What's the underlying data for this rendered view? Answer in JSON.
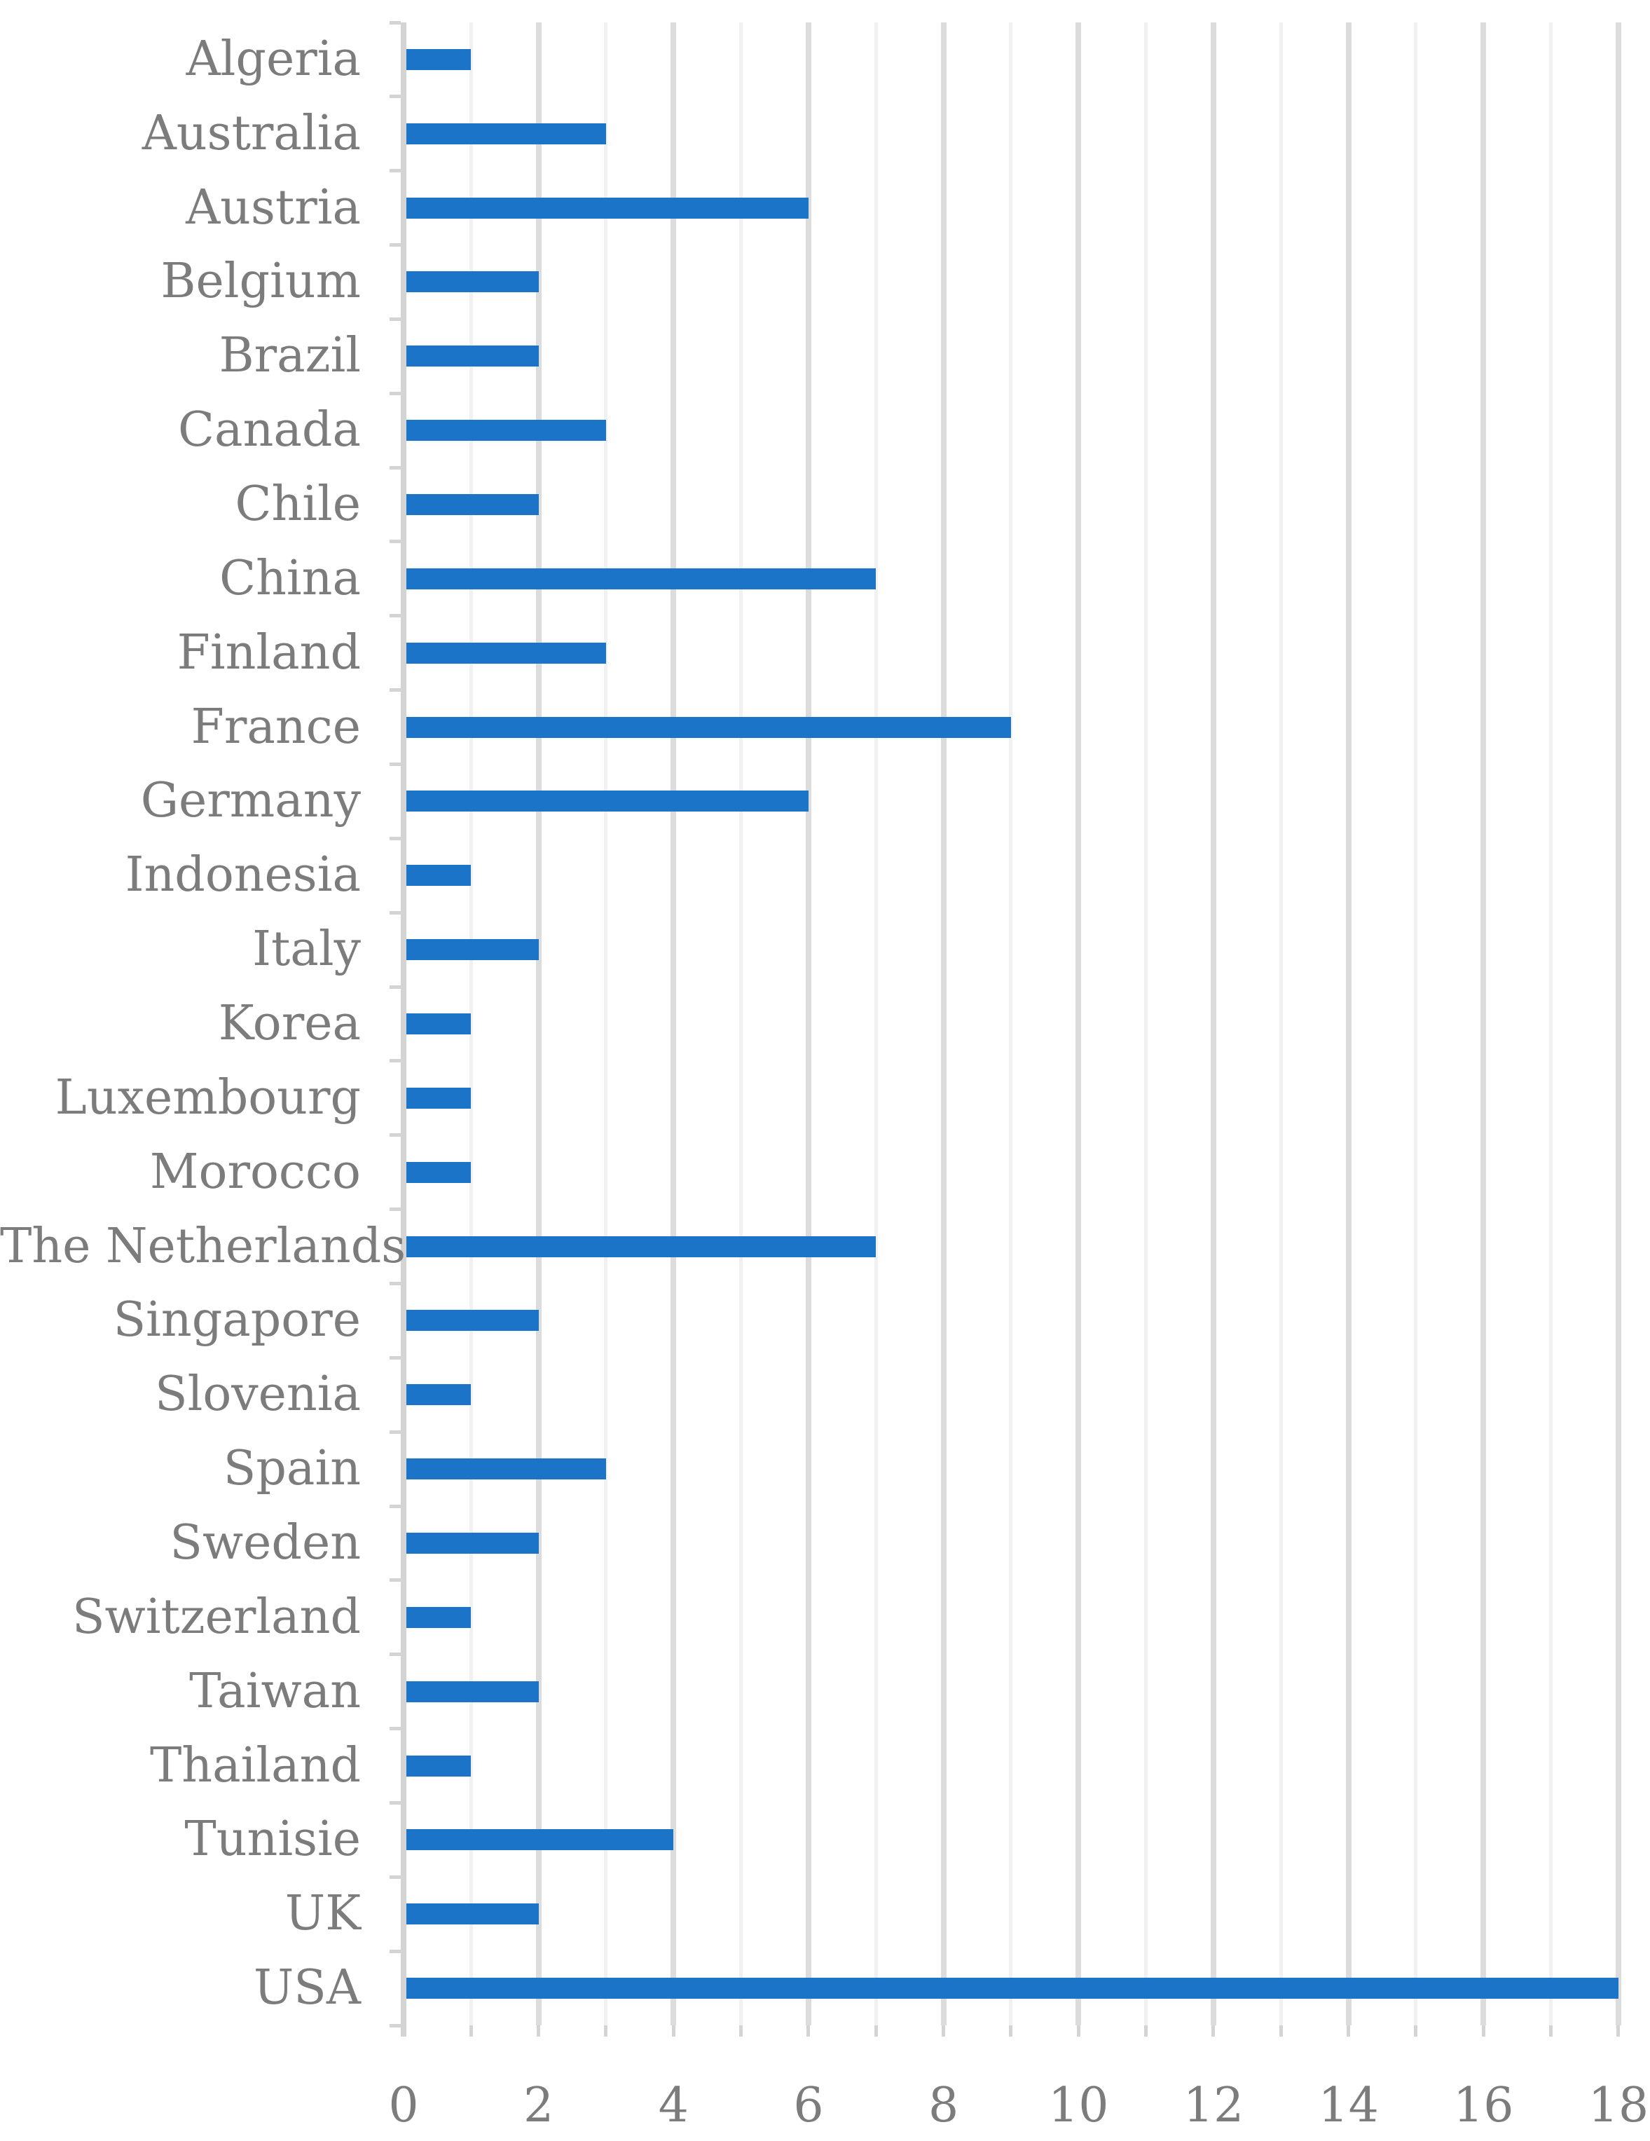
{
  "chart_data": {
    "type": "bar",
    "orientation": "horizontal",
    "title": "",
    "xlabel": "",
    "ylabel": "",
    "categories": [
      "Algeria",
      "Australia",
      "Austria",
      "Belgium",
      "Brazil",
      "Canada",
      "Chile",
      "China",
      "Finland",
      "France",
      "Germany",
      "Indonesia",
      "Italy",
      "Korea",
      "Luxembourg",
      "Morocco",
      "The Netherlands",
      "Singapore",
      "Slovenia",
      "Spain",
      "Sweden",
      "Switzerland",
      "Taiwan",
      "Thailand",
      "Tunisie",
      "UK",
      "USA"
    ],
    "values": [
      1,
      3,
      6,
      2,
      2,
      3,
      2,
      7,
      3,
      9,
      6,
      1,
      2,
      1,
      1,
      1,
      7,
      2,
      1,
      3,
      2,
      1,
      2,
      1,
      4,
      2,
      18
    ],
    "xlim": [
      0,
      18
    ],
    "x_tick_labels": [
      "0",
      "2",
      "4",
      "6",
      "8",
      "10",
      "12",
      "14",
      "16",
      "18"
    ],
    "x_tick_values": [
      0,
      2,
      4,
      6,
      8,
      10,
      12,
      14,
      16,
      18
    ],
    "gridlines": "vertical every 1 unit, labeled every 2 units",
    "legend": "none",
    "colors": {
      "bar": "#1C74C9",
      "axis_text": "#7C7C7C",
      "major_gridline": "#DCDCDC",
      "minor_gridline": "#F1F1F1",
      "axis_line": "#D4D4D4",
      "background": "#FFFFFF"
    }
  }
}
